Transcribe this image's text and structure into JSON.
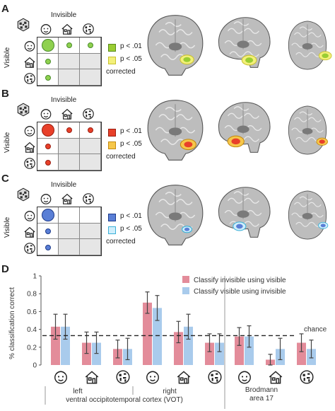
{
  "panels": [
    {
      "letter": "A",
      "col_label": "Invisible",
      "row_label": "Visible",
      "legend": [
        {
          "label": "p < .01",
          "fill": "#9acd32",
          "stroke": "#5a8a1a"
        },
        {
          "label": "p < .05",
          "fill": "#f3f07a",
          "stroke": "#c8c230"
        }
      ],
      "legend_note": "corrected",
      "dot_fill": "#8fd14f",
      "dot_stroke": "#4a8c2a"
    },
    {
      "letter": "B",
      "col_label": "Invisible",
      "row_label": "Visible",
      "legend": [
        {
          "label": "p < .01",
          "fill": "#e8402a",
          "stroke": "#9a1e10"
        },
        {
          "label": "p < .05",
          "fill": "#f6c74a",
          "stroke": "#c48a10"
        }
      ],
      "legend_note": "corrected",
      "dot_fill": "#e8402a",
      "dot_stroke": "#9a1e10"
    },
    {
      "letter": "C",
      "col_label": "Invisible",
      "row_label": "Visible",
      "legend": [
        {
          "label": "p < .01",
          "fill": "#5a7fd6",
          "stroke": "#1d3a8a"
        },
        {
          "label": "p < .05",
          "fill": "#cfeefb",
          "stroke": "#3ab0d8"
        }
      ],
      "legend_note": "corrected",
      "dot_fill": "#5a7fd6",
      "dot_stroke": "#1d3a8a"
    }
  ],
  "chart_data": {
    "type": "bar",
    "panel_letter": "D",
    "ylabel": "% classification correct",
    "ylim": [
      0,
      1
    ],
    "yticks": [
      "0",
      "0.2",
      "0.4",
      "0.6",
      "0.8",
      "1"
    ],
    "chance": 0.33,
    "chance_label": "chance",
    "categories": [
      "left-face",
      "left-house",
      "left-scrambled",
      "right-face",
      "right-house",
      "right-scrambled",
      "ba17-face",
      "ba17-house",
      "ba17-scrambled"
    ],
    "series": [
      {
        "name": "Classify invisible using visible",
        "color": "#e38c9a",
        "values": [
          0.43,
          0.25,
          0.18,
          0.7,
          0.37,
          0.25,
          0.32,
          0.06,
          0.25
        ],
        "errors": [
          0.14,
          0.12,
          0.1,
          0.12,
          0.12,
          0.1,
          0.1,
          0.06,
          0.1
        ]
      },
      {
        "name": "Classify visible using invisible",
        "color": "#a9cbec",
        "values": [
          0.43,
          0.25,
          0.18,
          0.64,
          0.43,
          0.25,
          0.32,
          0.18,
          0.18
        ],
        "errors": [
          0.14,
          0.12,
          0.12,
          0.14,
          0.14,
          0.1,
          0.12,
          0.12,
          0.1
        ]
      }
    ],
    "groups": [
      {
        "label": "left"
      },
      {
        "label": "right"
      },
      {
        "label": "Brodmann",
        "label2": "area 17"
      }
    ],
    "group_caption": "ventral occipitotemporal cortex (VOT)"
  }
}
